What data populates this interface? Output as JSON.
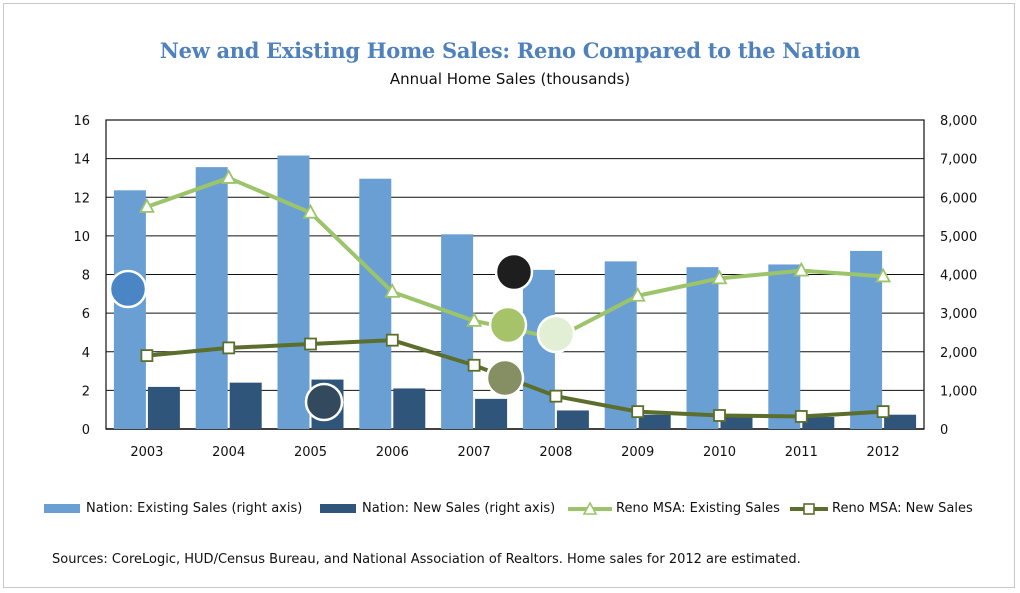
{
  "chart_data": {
    "type": "bar+line",
    "title": "New and Existing Home Sales: Reno Compared to the Nation",
    "subtitle": "Annual Home Sales (thousands)",
    "categories": [
      "2003",
      "2004",
      "2005",
      "2006",
      "2007",
      "2008",
      "2009",
      "2010",
      "2011",
      "2012"
    ],
    "left_axis": {
      "min": 0,
      "max": 16,
      "ticks": [
        "0",
        "2",
        "4",
        "6",
        "8",
        "10",
        "12",
        "14",
        "16"
      ]
    },
    "right_axis": {
      "min": 0,
      "max": 8000,
      "ticks": [
        "0",
        "1,000",
        "2,000",
        "3,000",
        "4,000",
        "5,000",
        "6,000",
        "7,000",
        "8,000"
      ]
    },
    "grid": true,
    "legend_position": "bottom",
    "series": [
      {
        "name": "Nation: Existing Sales (right axis)",
        "kind": "bar",
        "axis": "right",
        "color": "#6a9fd4",
        "values": [
          6180,
          6780,
          7080,
          6480,
          5040,
          4120,
          4340,
          4190,
          4260,
          4610
        ]
      },
      {
        "name": "Nation: New Sales (right axis)",
        "kind": "bar",
        "axis": "right",
        "color": "#30557a",
        "values": [
          1090,
          1200,
          1280,
          1050,
          780,
          480,
          370,
          320,
          310,
          370
        ]
      },
      {
        "name": "Reno MSA: Existing Sales",
        "kind": "line",
        "axis": "left",
        "color": "#9cc46a",
        "marker": "triangle",
        "values": [
          11.5,
          13.0,
          11.2,
          7.1,
          5.6,
          4.7,
          6.9,
          7.8,
          8.2,
          7.9
        ]
      },
      {
        "name": "Reno MSA: New Sales",
        "kind": "line",
        "axis": "left",
        "color": "#5c6e2c",
        "marker": "square",
        "values": [
          3.8,
          4.2,
          4.4,
          4.6,
          3.3,
          1.7,
          0.9,
          0.7,
          0.65,
          0.9
        ]
      }
    ],
    "source_note": "Sources: CoreLogic, HUD/Census  Bureau, and National Association of Realtors. Home sales for 2012 are estimated.",
    "overlay_dots": [
      {
        "color": "#4a86c5",
        "ring": true
      },
      {
        "color": "#33495e",
        "ring": true
      },
      {
        "color": "#1e1e1e",
        "ring": true
      },
      {
        "color": "#a6c36a",
        "ring": true
      },
      {
        "color": "#e2efd5",
        "ring": true
      },
      {
        "color": "#868f63",
        "ring": true
      }
    ]
  }
}
